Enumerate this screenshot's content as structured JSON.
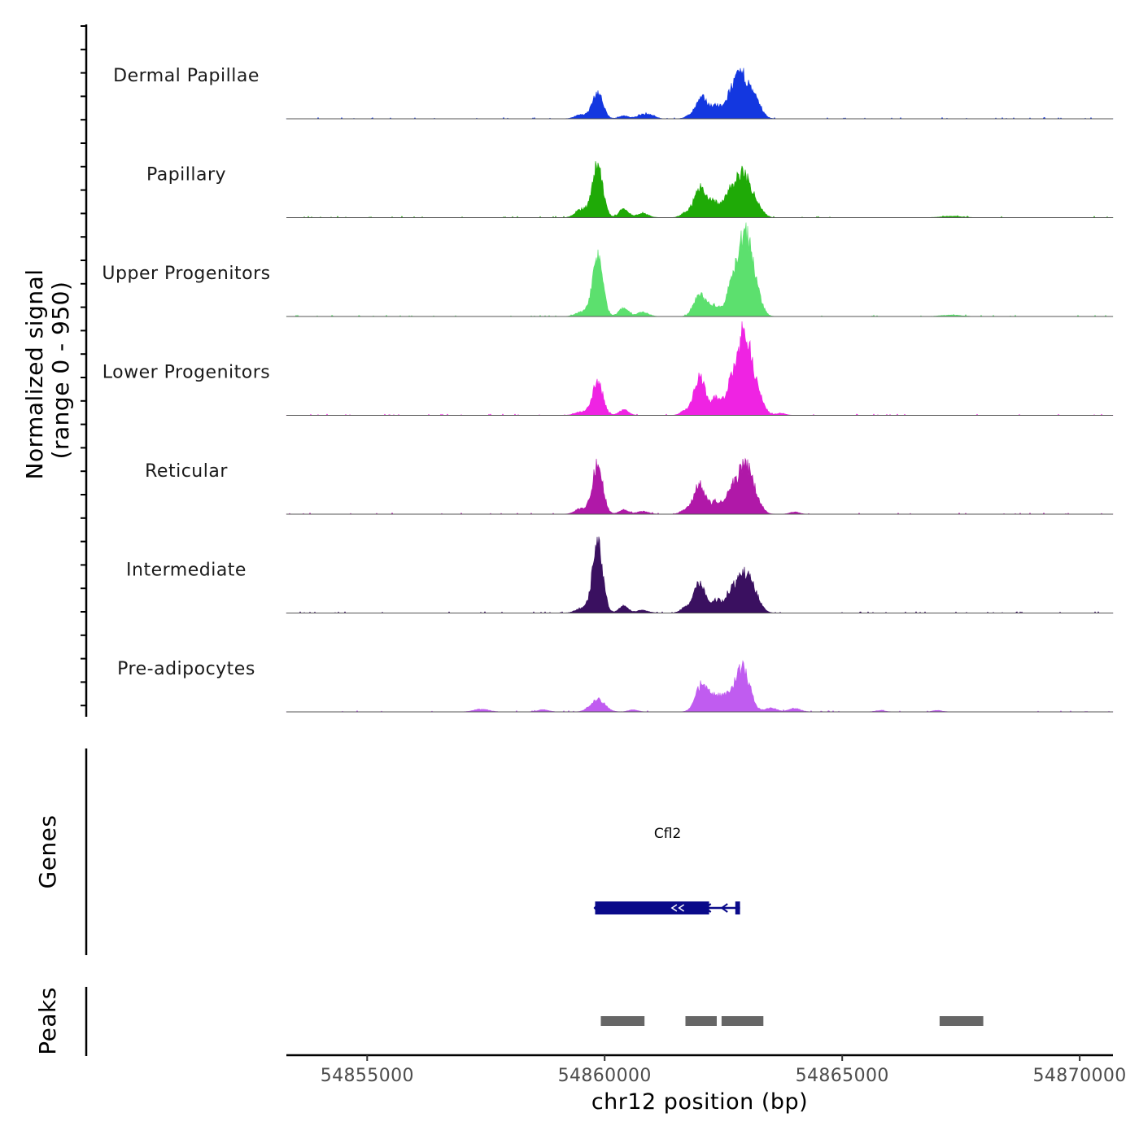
{
  "chart_data": {
    "type": "area",
    "title": "",
    "ylabel_line1": "Normalized signal",
    "ylabel_line2": "(range 0 - 950)",
    "xlabel": "chr12 position (bp)",
    "xlim": [
      54853300,
      54870700
    ],
    "ylim": [
      0,
      950
    ],
    "xticks": [
      54855000,
      54860000,
      54865000,
      54870000
    ],
    "xtick_labels": [
      "54855000",
      "54860000",
      "54865000",
      "54870000"
    ],
    "series": [
      {
        "name": "Dermal Papillae",
        "color": "#1337e0",
        "peaks": [
          [
            54859500,
            0.06,
            120
          ],
          [
            54859850,
            0.38,
            110
          ],
          [
            54860400,
            0.04,
            100
          ],
          [
            54860800,
            0.06,
            120
          ],
          [
            54861000,
            0.04,
            90
          ],
          [
            54861800,
            0.04,
            100
          ],
          [
            54862050,
            0.3,
            120
          ],
          [
            54862350,
            0.18,
            110
          ],
          [
            54862650,
            0.28,
            110
          ],
          [
            54862900,
            0.62,
            150
          ],
          [
            54863200,
            0.2,
            120
          ]
        ]
      },
      {
        "name": "Papillary",
        "color": "#1faa07",
        "peaks": [
          [
            54859500,
            0.12,
            120
          ],
          [
            54859850,
            0.78,
            110
          ],
          [
            54860400,
            0.12,
            100
          ],
          [
            54860800,
            0.06,
            120
          ],
          [
            54861700,
            0.06,
            100
          ],
          [
            54862000,
            0.44,
            120
          ],
          [
            54862300,
            0.22,
            110
          ],
          [
            54862600,
            0.3,
            110
          ],
          [
            54862900,
            0.66,
            150
          ],
          [
            54863200,
            0.18,
            120
          ],
          [
            54867300,
            0.02,
            200
          ]
        ]
      },
      {
        "name": "Upper Progenitors",
        "color": "#5ce06e",
        "peaks": [
          [
            54859500,
            0.06,
            120
          ],
          [
            54859850,
            0.88,
            110
          ],
          [
            54860400,
            0.12,
            100
          ],
          [
            54860800,
            0.06,
            120
          ],
          [
            54862000,
            0.32,
            120
          ],
          [
            54862300,
            0.16,
            110
          ],
          [
            54862650,
            0.36,
            110
          ],
          [
            54862950,
            1.2,
            150
          ],
          [
            54863200,
            0.22,
            120
          ],
          [
            54867300,
            0.02,
            200
          ]
        ]
      },
      {
        "name": "Lower Progenitors",
        "color": "#ef23e3",
        "peaks": [
          [
            54859500,
            0.05,
            120
          ],
          [
            54859850,
            0.5,
            110
          ],
          [
            54860400,
            0.08,
            100
          ],
          [
            54861700,
            0.06,
            100
          ],
          [
            54862000,
            0.54,
            120
          ],
          [
            54862350,
            0.24,
            110
          ],
          [
            54862650,
            0.38,
            110
          ],
          [
            54862950,
            1.25,
            150
          ],
          [
            54863250,
            0.2,
            120
          ],
          [
            54863700,
            0.03,
            100
          ]
        ]
      },
      {
        "name": "Reticular",
        "color": "#b018a8",
        "peaks": [
          [
            54859500,
            0.08,
            120
          ],
          [
            54859850,
            0.72,
            110
          ],
          [
            54860400,
            0.06,
            100
          ],
          [
            54860800,
            0.04,
            120
          ],
          [
            54861700,
            0.06,
            100
          ],
          [
            54862000,
            0.44,
            120
          ],
          [
            54862350,
            0.18,
            110
          ],
          [
            54862650,
            0.3,
            110
          ],
          [
            54862950,
            0.72,
            150
          ],
          [
            54863200,
            0.14,
            120
          ],
          [
            54864000,
            0.03,
            100
          ]
        ]
      },
      {
        "name": "Intermediate",
        "color": "#3a1060",
        "peaks": [
          [
            54859500,
            0.06,
            120
          ],
          [
            54859850,
            0.98,
            110
          ],
          [
            54860400,
            0.1,
            100
          ],
          [
            54860800,
            0.04,
            120
          ],
          [
            54861700,
            0.08,
            100
          ],
          [
            54862000,
            0.44,
            120
          ],
          [
            54862350,
            0.18,
            110
          ],
          [
            54862650,
            0.28,
            110
          ],
          [
            54862950,
            0.58,
            150
          ],
          [
            54863200,
            0.14,
            120
          ]
        ]
      },
      {
        "name": "Pre-adipocytes",
        "color": "#c05cf0",
        "peaks": [
          [
            54857400,
            0.04,
            150
          ],
          [
            54858700,
            0.03,
            120
          ],
          [
            54859850,
            0.18,
            150
          ],
          [
            54860600,
            0.03,
            100
          ],
          [
            54862050,
            0.4,
            130
          ],
          [
            54862350,
            0.22,
            110
          ],
          [
            54862600,
            0.2,
            110
          ],
          [
            54862900,
            0.64,
            150
          ],
          [
            54863500,
            0.06,
            120
          ],
          [
            54864000,
            0.05,
            120
          ],
          [
            54865800,
            0.02,
            100
          ],
          [
            54867000,
            0.02,
            100
          ]
        ]
      }
    ],
    "genes_label": "Genes",
    "gene": {
      "name": "Cfl2",
      "color": "#0a0a8a",
      "start": 54859800,
      "end": 54862850,
      "strand": "-",
      "exons": [
        [
          54859800,
          54862200
        ],
        [
          54861400,
          54861490
        ],
        [
          54861550,
          54861600
        ],
        [
          54861750,
          54862050
        ],
        [
          54862750,
          54862850
        ]
      ]
    },
    "peaks_label": "Peaks",
    "peak_color": "#666666",
    "peak_regions": [
      [
        54859920,
        54860840
      ],
      [
        54861700,
        54862360
      ],
      [
        54862460,
        54863340
      ],
      [
        54867050,
        54867970
      ]
    ]
  }
}
